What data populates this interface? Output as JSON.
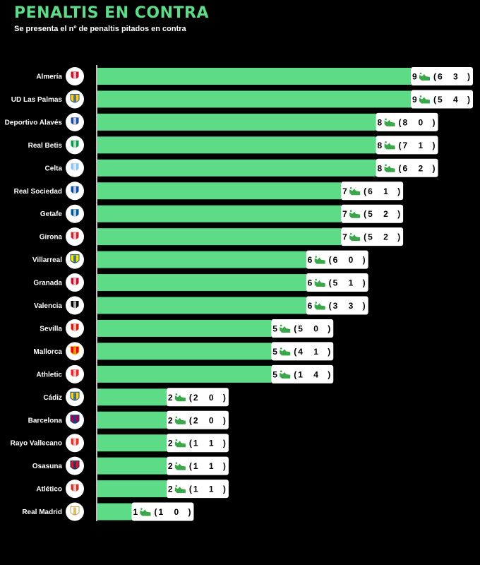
{
  "header": {
    "title": "PENALTIS EN CONTRA",
    "subtitle": "Se presenta el nº de penaltis pitados en contra"
  },
  "colors": {
    "bar": "#5ddb87",
    "title": "#5ddb87",
    "background": "#000000",
    "icon_green": "#3aa84a"
  },
  "chart_data": {
    "type": "bar",
    "orientation": "horizontal",
    "title": "PENALTIS EN CONTRA",
    "subtitle": "Se presenta el nº de penaltis pitados en contra",
    "categories": [
      "Almería",
      "UD Las Palmas",
      "Deportivo Alavés",
      "Real Betis",
      "Celta",
      "Real Sociedad",
      "Getafe",
      "Girona",
      "Villarreal",
      "Granada",
      "Valencia",
      "Sevilla",
      "Mallorca",
      "Athletic",
      "Cádiz",
      "Barcelona",
      "Rayo Vallecano",
      "Osasuna",
      "Atlético",
      "Real Madrid"
    ],
    "values": [
      9,
      9,
      8,
      8,
      8,
      7,
      7,
      7,
      6,
      6,
      6,
      5,
      5,
      5,
      2,
      2,
      2,
      2,
      2,
      1
    ],
    "breakdown": [
      [
        6,
        3
      ],
      [
        5,
        4
      ],
      [
        8,
        0
      ],
      [
        7,
        1
      ],
      [
        6,
        2
      ],
      [
        6,
        1
      ],
      [
        5,
        2
      ],
      [
        5,
        2
      ],
      [
        6,
        0
      ],
      [
        5,
        1
      ],
      [
        3,
        3
      ],
      [
        5,
        0
      ],
      [
        4,
        1
      ],
      [
        1,
        4
      ],
      [
        2,
        0
      ],
      [
        2,
        0
      ],
      [
        1,
        1
      ],
      [
        1,
        1
      ],
      [
        1,
        1
      ],
      [
        1,
        0
      ]
    ],
    "xlim": [
      0,
      9
    ],
    "grid": false,
    "legend": "none"
  },
  "crest_colors": [
    [
      "#c8102e",
      "#ffffff"
    ],
    [
      "#fcd116",
      "#1f4ea1"
    ],
    [
      "#1e4fa0",
      "#ffffff"
    ],
    [
      "#0a9a4a",
      "#ffffff"
    ],
    [
      "#8ac3ee",
      "#ffffff"
    ],
    [
      "#0b4ea2",
      "#ffffff"
    ],
    [
      "#005999",
      "#ffffff"
    ],
    [
      "#cd2534",
      "#ffffff"
    ],
    [
      "#fce300",
      "#005187"
    ],
    [
      "#c8102e",
      "#ffffff"
    ],
    [
      "#000000",
      "#ffffff"
    ],
    [
      "#d81e05",
      "#ffffff"
    ],
    [
      "#e20613",
      "#fcd116"
    ],
    [
      "#ee2523",
      "#ffffff"
    ],
    [
      "#fcd116",
      "#0045a0"
    ],
    [
      "#a50044",
      "#004d98"
    ],
    [
      "#e53027",
      "#ffffff"
    ],
    [
      "#d91a21",
      "#0a346f"
    ],
    [
      "#cb3524",
      "#ffffff"
    ],
    [
      "#ffffff",
      "#c9a13b"
    ]
  ]
}
